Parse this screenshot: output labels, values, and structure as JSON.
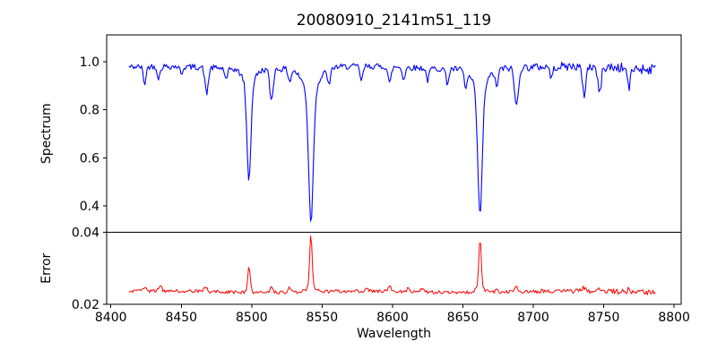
{
  "chart_data": {
    "type": "line",
    "title": "20080910_2141m51_119",
    "xlabel": "Wavelength",
    "x_range": [
      8397,
      8805
    ],
    "x_data_range": [
      8413,
      8787
    ],
    "x_step": 0.8,
    "x_ticks": [
      8400,
      8450,
      8500,
      8550,
      8600,
      8650,
      8700,
      8750,
      8800
    ],
    "x_tick_labels": [
      "8400",
      "8450",
      "8500",
      "8550",
      "8600",
      "8650",
      "8700",
      "8750",
      "8800"
    ],
    "grid": false,
    "legend": null,
    "background_color": "#ffffff",
    "axis_color": "#000000",
    "noise_seed": 42,
    "panels": [
      {
        "name": "spectrum",
        "ylabel": "Spectrum",
        "color": "#0000ff",
        "line_width": 1.1,
        "ylim": [
          0.29,
          1.112
        ],
        "yticks": [
          0.4,
          0.6,
          0.8,
          1.0
        ],
        "ytick_labels": [
          "0.4",
          "0.6",
          "0.8",
          "1.0"
        ],
        "continuum": 0.975,
        "wobble_amp": 0.006,
        "noise_amp_left": 0.012,
        "noise_amp_right": 0.023,
        "noise_ramp_start": 8655,
        "noise_ramp_span": 130,
        "absorption_lines": [
          [
            8424,
            0.07,
            1.4
          ],
          [
            8434,
            0.05,
            1.4
          ],
          [
            8450,
            0.03,
            1.3
          ],
          [
            8468,
            0.11,
            1.6
          ],
          [
            8482,
            0.05,
            1.4
          ],
          [
            8498.02,
            0.4,
            2.0
          ],
          [
            8498.02,
            0.06,
            6.0
          ],
          [
            8514,
            0.13,
            1.7
          ],
          [
            8527,
            0.05,
            1.4
          ],
          [
            8542.09,
            0.54,
            2.3
          ],
          [
            8542.09,
            0.1,
            8.0
          ],
          [
            8555,
            0.07,
            1.4
          ],
          [
            8578,
            0.06,
            1.4
          ],
          [
            8598,
            0.07,
            1.5
          ],
          [
            8608,
            0.05,
            1.4
          ],
          [
            8625,
            0.05,
            1.4
          ],
          [
            8639,
            0.06,
            1.4
          ],
          [
            8652,
            0.07,
            1.4
          ],
          [
            8662.14,
            0.52,
            2.2
          ],
          [
            8662.14,
            0.09,
            7.0
          ],
          [
            8674,
            0.07,
            1.5
          ],
          [
            8688,
            0.16,
            1.9
          ],
          [
            8713,
            0.05,
            1.4
          ],
          [
            8736,
            0.12,
            1.7
          ],
          [
            8747,
            0.11,
            1.7
          ],
          [
            8768,
            0.08,
            1.5
          ]
        ]
      },
      {
        "name": "error",
        "ylabel": "Error",
        "color": "#ff0000",
        "line_width": 1.0,
        "ylim": [
          0.02,
          0.04
        ],
        "yticks": [
          0.02,
          0.04
        ],
        "ytick_labels": [
          "0.02",
          "0.04"
        ],
        "baseline": 0.0235,
        "wobble_amp": 0.0002,
        "noise_amp_left": 0.00045,
        "noise_amp_right": 0.0008,
        "noise_ramp_start": 8655,
        "noise_ramp_span": 130,
        "emission_peaks": [
          [
            8424,
            0.0013,
            1.4
          ],
          [
            8435,
            0.0018,
            1.4
          ],
          [
            8467,
            0.0014,
            1.4
          ],
          [
            8498.02,
            0.0068,
            1.3
          ],
          [
            8514,
            0.002,
            1.3
          ],
          [
            8527,
            0.0012,
            1.3
          ],
          [
            8542.09,
            0.0145,
            1.2
          ],
          [
            8542.09,
            0.0015,
            4.0
          ],
          [
            8582,
            0.0008,
            1.3
          ],
          [
            8598,
            0.0014,
            1.3
          ],
          [
            8611,
            0.0008,
            1.3
          ],
          [
            8621,
            0.0008,
            1.3
          ],
          [
            8662.14,
            0.0135,
            1.2
          ],
          [
            8662.14,
            0.0015,
            4.0
          ],
          [
            8674,
            0.001,
            1.3
          ],
          [
            8688,
            0.0013,
            1.5
          ],
          [
            8736,
            0.001,
            1.4
          ],
          [
            8747,
            0.0011,
            1.4
          ],
          [
            8768,
            0.0008,
            1.4
          ]
        ]
      }
    ]
  }
}
